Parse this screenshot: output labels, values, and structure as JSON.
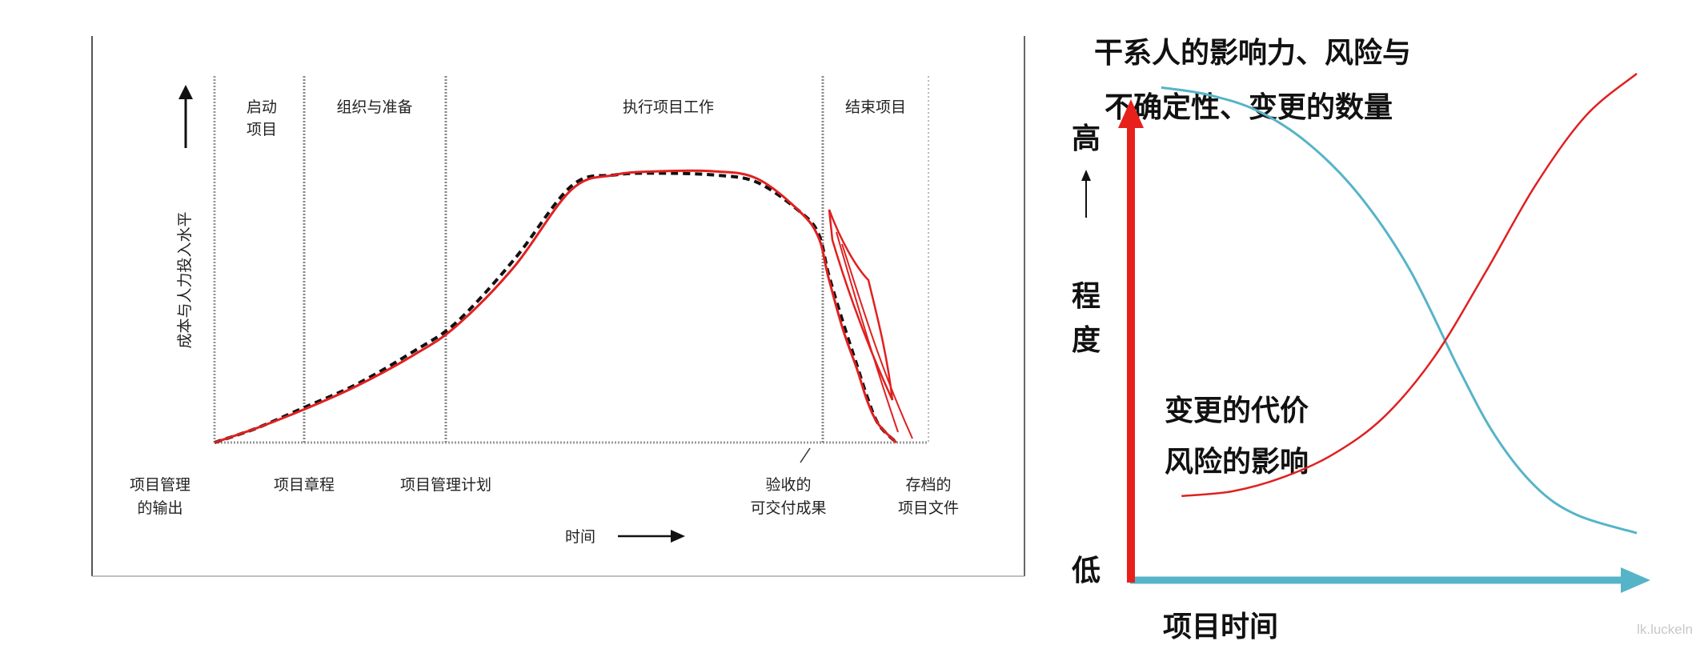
{
  "watermark": "lk.luckeln",
  "chart_data": [
    {
      "type": "line",
      "ylabel": "成本与人力投入水平",
      "xlabel": "时间",
      "phases": [
        "启动项目",
        "组织与准备",
        "执行项目工作",
        "结束项目"
      ],
      "milestones": [
        "项目管理的输出",
        "项目章程",
        "项目管理计划",
        "验收的可交付成果",
        "存档的项目文件"
      ],
      "x_range": [
        0,
        100
      ],
      "y_range": [
        0,
        100
      ],
      "phase_boundaries": [
        12.5,
        32.5,
        84.6
      ],
      "series": [
        {
          "style": "dashed",
          "color": "#111111",
          "x": [
            0,
            6,
            12.5,
            20,
            28,
            34,
            42,
            50,
            56,
            62,
            70,
            76,
            82,
            84.6,
            86,
            88,
            90,
            91.5,
            93,
            95.5
          ],
          "y": [
            0,
            4,
            9.5,
            16,
            25,
            33,
            50,
            70,
            73,
            73.5,
            73,
            71,
            63,
            57,
            46,
            33,
            21,
            12,
            5,
            0
          ]
        },
        {
          "style": "solid",
          "color": "#e02020",
          "x": [
            0,
            6,
            12.5,
            20,
            28,
            34,
            42,
            50,
            56,
            62,
            70,
            76,
            82,
            84.6,
            86,
            88,
            90,
            91.5,
            93,
            95.5
          ],
          "y": [
            0,
            4,
            9,
            15.5,
            24,
            32,
            48,
            69,
            73,
            74,
            74,
            72,
            63,
            56,
            45,
            31,
            20,
            11,
            5,
            0
          ]
        }
      ]
    },
    {
      "type": "line",
      "xlabel": "项目时间",
      "ylabel": [
        "高",
        "程",
        "度",
        "低"
      ],
      "x_range": [
        0,
        100
      ],
      "y_range": [
        0,
        100
      ],
      "series": [
        {
          "name": "干系人的影响力、风险与不确定性、变更的数量",
          "color": "#56b4c8",
          "x": [
            6,
            15,
            25,
            35,
            45,
            55,
            65,
            72,
            80,
            88,
            100
          ],
          "y": [
            97,
            95.5,
            92,
            85,
            74,
            58,
            36,
            22,
            11,
            5,
            1
          ]
        },
        {
          "name": "变更的代价风险的影响",
          "color": "#e02020",
          "x": [
            10,
            20,
            30,
            40,
            50,
            60,
            70,
            80,
            90,
            100
          ],
          "y": [
            9,
            10,
            13,
            18,
            26,
            39,
            57,
            76,
            91,
            100
          ]
        }
      ],
      "labels": {
        "top_line1": "干系人的影响力、风险与",
        "top_line2": "不确定性、变更的数量",
        "bottom_line1": "变更的代价",
        "bottom_line2": "风险的影响"
      }
    }
  ]
}
